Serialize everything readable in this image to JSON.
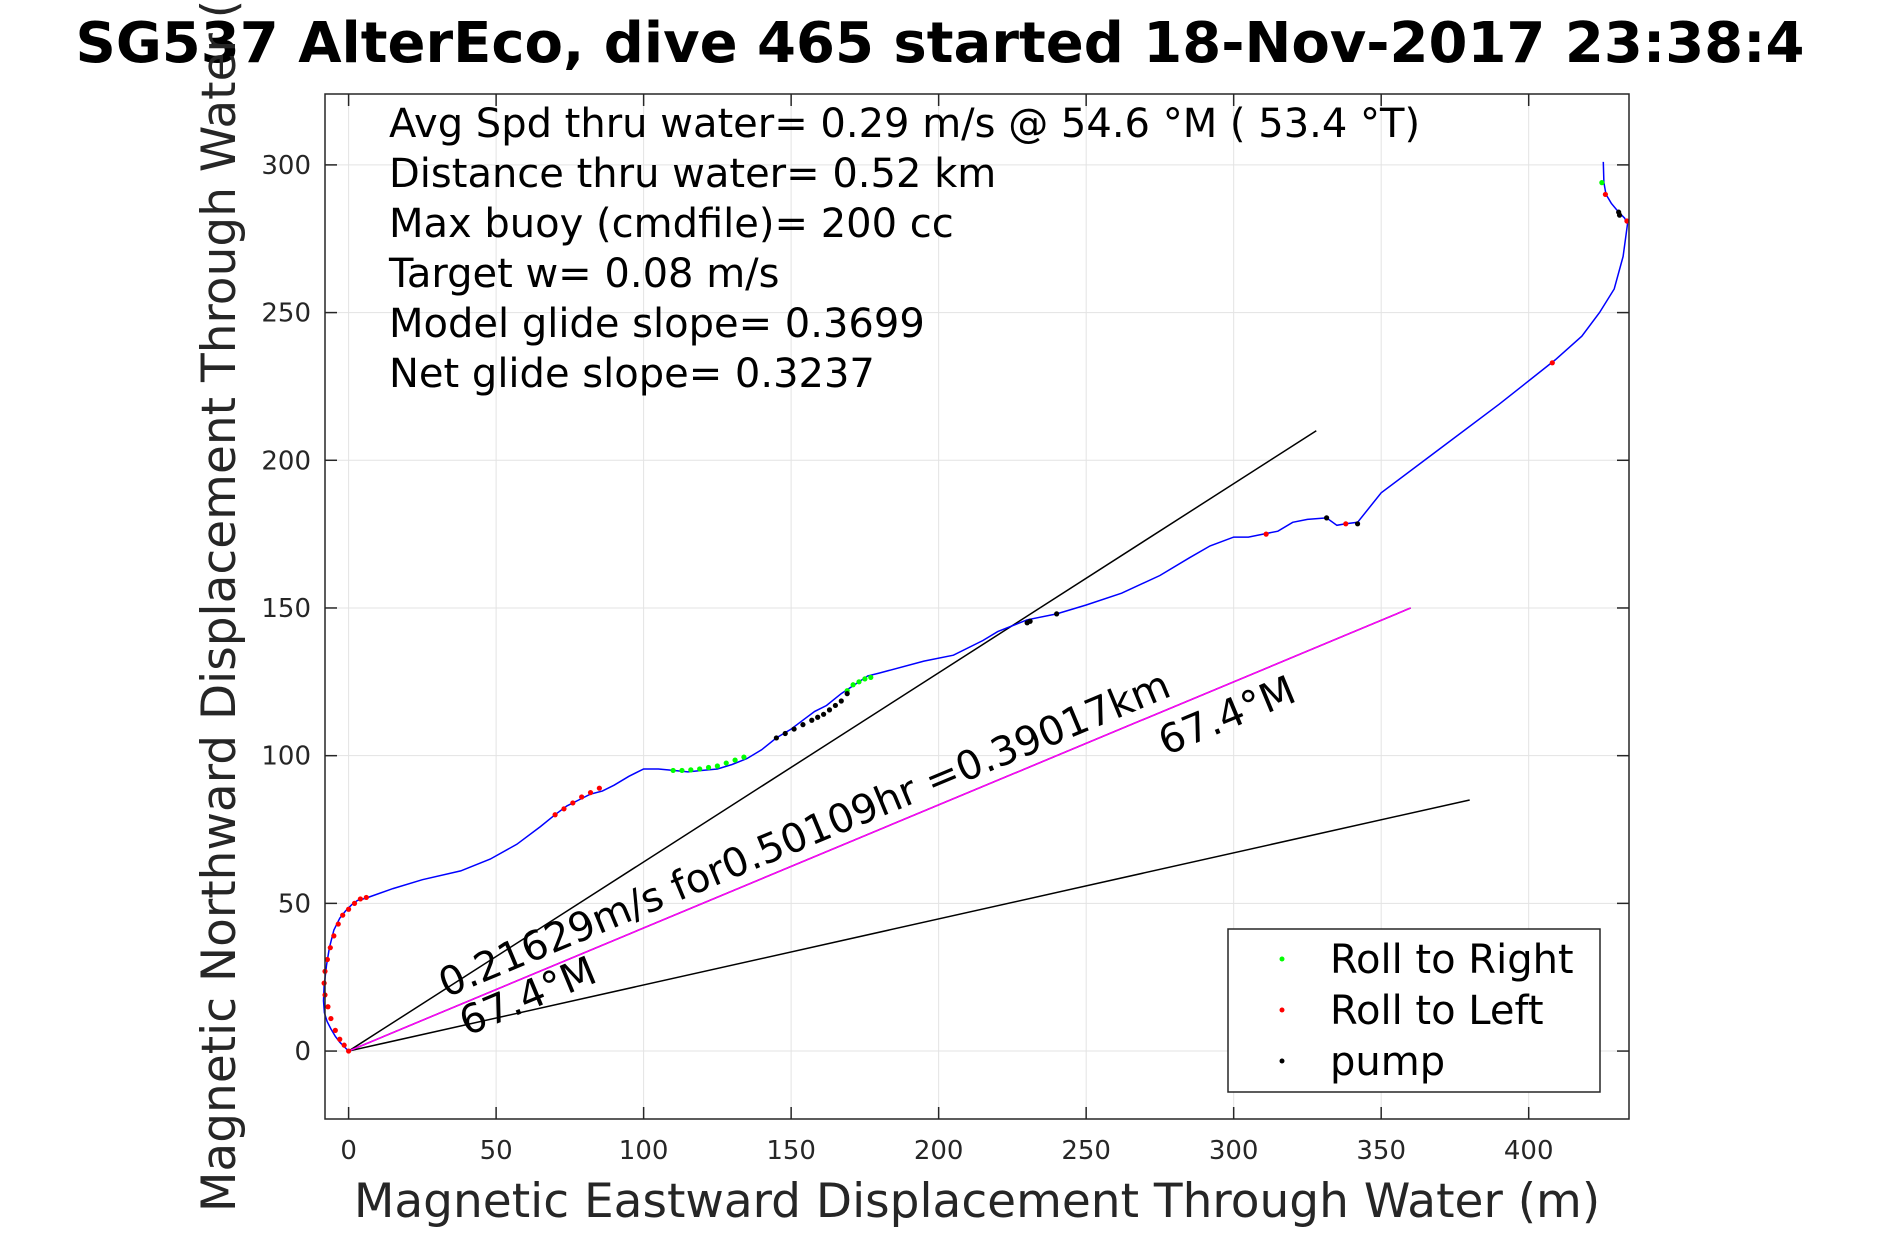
{
  "chart_data": {
    "type": "line",
    "title": "SG537 AlterEco, dive 465 started 18-Nov-2017 23:38:4",
    "xlabel": "Magnetic Eastward Displacement Through Water (m)",
    "ylabel": "Magnetic Northward Displacement Through Water (",
    "xlim": [
      -8,
      434
    ],
    "ylim": [
      -23,
      324
    ],
    "xticks": [
      0,
      50,
      100,
      150,
      200,
      250,
      300,
      350,
      400
    ],
    "yticks": [
      0,
      50,
      100,
      150,
      200,
      250,
      300
    ],
    "grid": true,
    "info_lines": [
      "Avg Spd thru water=  0.29 m/s @  54.6 °M ( 53.4 °T)",
      "Distance thru water=  0.52 km",
      "Max buoy (cmdfile)= 200 cc",
      "Target w= 0.08 m/s",
      "Model glide slope= 0.3699",
      "Net glide slope= 0.3237"
    ],
    "annotations": [
      {
        "text": "0.21629m/s for0.50109hr =0.39017km",
        "x": 33,
        "y": 18,
        "angle": 22.6
      },
      {
        "text": "67.4°M",
        "x": 40,
        "y": 5,
        "angle": 22.6
      },
      {
        "text": "67.4°M",
        "x": 277,
        "y": 100,
        "angle": 22.6
      }
    ],
    "series": [
      {
        "name": "track",
        "color": "#0000ff",
        "x": [
          425.3,
          425.5,
          426.2,
          428.0,
          430.5,
          432.5,
          433.5,
          432.0,
          429.0,
          424.0,
          418.0,
          409.0,
          390.0,
          370.0,
          350.0,
          342.0,
          338.0,
          335.0,
          331.5,
          325.0,
          320.0,
          315.0,
          310.0,
          305.0,
          300.0,
          292.0,
          285.0,
          275.0,
          262.0,
          250.0,
          240.0,
          230.0,
          220.0,
          215.0,
          205.0,
          195.0,
          180.0,
          176.0,
          170.0,
          167.0,
          162.0,
          158.0,
          154.0,
          150.0,
          145.0,
          140.0,
          135.0,
          130.0,
          125.0,
          120.0,
          115.0,
          110.0,
          105.0,
          100.0,
          95.0,
          90.0,
          86.0,
          82.0,
          78.0,
          74.0,
          70.0,
          65.0,
          57.0,
          48.0,
          38.0,
          25.0,
          15.0,
          6.5,
          5.0,
          3.0,
          1.0,
          -1.0,
          -3.0,
          -5.0,
          -6.5,
          -7.5,
          -8.3,
          -8.5,
          -8.2,
          -7.3,
          -6.0,
          -4.5,
          -3.0,
          -1.5,
          -0.5,
          0.0
        ],
        "y": [
          301.0,
          294.0,
          290.0,
          287.0,
          284.0,
          282.0,
          280.0,
          269.0,
          258.0,
          250.0,
          242.0,
          234.0,
          219.0,
          204.0,
          189.0,
          179.0,
          178.5,
          178.0,
          180.5,
          180.0,
          179.0,
          176.0,
          175.0,
          174.0,
          174.0,
          171.0,
          167.0,
          161.0,
          155.0,
          151.0,
          148.0,
          146.0,
          142.0,
          139.0,
          134.0,
          132.0,
          128.0,
          127.0,
          123.0,
          121.0,
          117.0,
          115.0,
          112.0,
          109.0,
          106.0,
          102.0,
          99.0,
          97.0,
          95.5,
          95.0,
          94.5,
          95.0,
          95.5,
          95.5,
          93.0,
          90.0,
          88.0,
          87.0,
          85.0,
          83.0,
          80.0,
          76.0,
          70.0,
          65.0,
          61.0,
          58.0,
          55.0,
          52.0,
          51.5,
          51.0,
          49.5,
          47.5,
          45.0,
          41.0,
          35.0,
          29.0,
          22.0,
          17.0,
          13.0,
          10.0,
          7.5,
          5.0,
          3.0,
          1.5,
          0.5,
          0.0
        ]
      }
    ],
    "lines": [
      {
        "x": [
          0,
          328
        ],
        "y": [
          0,
          210
        ],
        "color": "#000000"
      },
      {
        "x": [
          0,
          360
        ],
        "y": [
          0,
          150
        ],
        "color": "#000000"
      },
      {
        "x": [
          0,
          380
        ],
        "y": [
          0,
          85
        ],
        "color": "#000000"
      },
      {
        "x": [
          0,
          360
        ],
        "y": [
          0,
          150
        ],
        "color": "#ff00ff"
      }
    ],
    "markers": {
      "roll_right": {
        "label": "Roll to Right",
        "color": "#00ff00",
        "points": [
          [
            110,
            95
          ],
          [
            113,
            95
          ],
          [
            116,
            95.2
          ],
          [
            119,
            95.5
          ],
          [
            122,
            96
          ],
          [
            125,
            96.5
          ],
          [
            128,
            97.5
          ],
          [
            131,
            98.5
          ],
          [
            134,
            99.5
          ],
          [
            169,
            122
          ],
          [
            171,
            124
          ],
          [
            173,
            125
          ],
          [
            175,
            126
          ],
          [
            177,
            126.5
          ],
          [
            424.8,
            294
          ]
        ]
      },
      "roll_left": {
        "label": "Roll to Left",
        "color": "#ff0000",
        "points": [
          [
            0,
            0
          ],
          [
            -1.5,
            2
          ],
          [
            -3,
            4
          ],
          [
            -4.5,
            7
          ],
          [
            -6,
            11
          ],
          [
            -7,
            15
          ],
          [
            -8,
            19
          ],
          [
            -8.3,
            23
          ],
          [
            -8,
            27
          ],
          [
            -7.2,
            31
          ],
          [
            -6.2,
            35
          ],
          [
            -5,
            39
          ],
          [
            -3.5,
            43
          ],
          [
            -2,
            46
          ],
          [
            0,
            48
          ],
          [
            2,
            50
          ],
          [
            4,
            51.5
          ],
          [
            6,
            52
          ],
          [
            70,
            80
          ],
          [
            73,
            82
          ],
          [
            76,
            84
          ],
          [
            79,
            86
          ],
          [
            82,
            87.5
          ],
          [
            85,
            89
          ],
          [
            311,
            175
          ],
          [
            338,
            178.5
          ],
          [
            408,
            233
          ],
          [
            426,
            290
          ],
          [
            433.3,
            281
          ]
        ]
      },
      "pump": {
        "label": "pump",
        "color": "#000000",
        "points": [
          [
            145,
            106
          ],
          [
            148,
            107.5
          ],
          [
            151,
            109
          ],
          [
            154,
            110.5
          ],
          [
            157,
            112
          ],
          [
            159,
            113
          ],
          [
            161,
            114
          ],
          [
            163,
            115.5
          ],
          [
            165,
            117
          ],
          [
            167,
            118.5
          ],
          [
            169,
            121
          ],
          [
            230,
            145
          ],
          [
            231,
            145.5
          ],
          [
            240,
            148
          ],
          [
            430.5,
            284
          ],
          [
            430.8,
            283
          ],
          [
            331.5,
            180.5
          ],
          [
            342,
            178.5
          ]
        ]
      }
    },
    "legend": {
      "placement": "bottom-right",
      "entries": [
        {
          "label": "Roll to Right",
          "color": "#00ff00"
        },
        {
          "label": "Roll to Left",
          "color": "#ff0000"
        },
        {
          "label": "pump",
          "color": "#000000"
        }
      ]
    }
  }
}
